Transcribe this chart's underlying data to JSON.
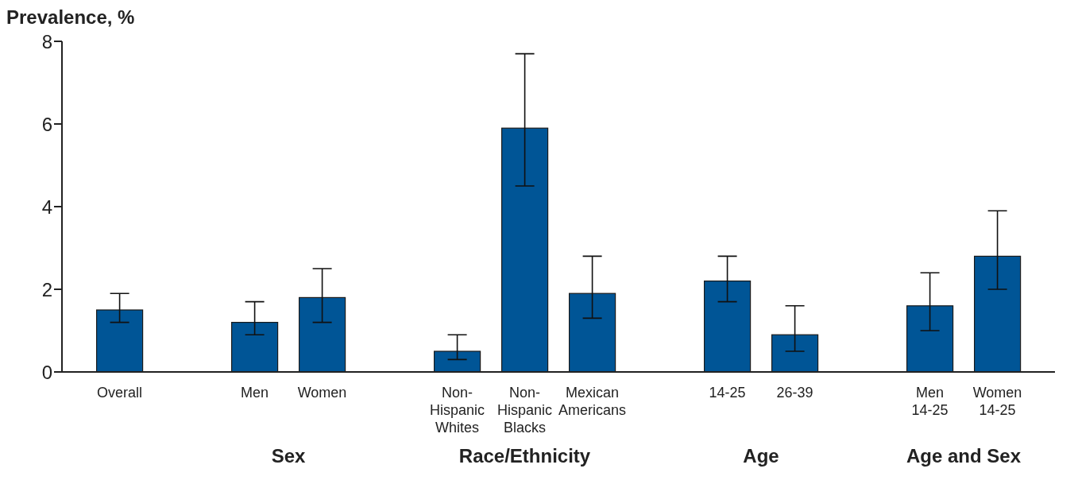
{
  "chart_data": {
    "type": "bar",
    "ylabel": "Prevalence, %",
    "categories": [
      "Overall",
      null,
      "Men",
      "Women",
      null,
      "Non-\nHispanic\nWhites",
      "Non-\nHispanic\nBlacks",
      "Mexican\nAmericans",
      null,
      "14-25",
      "26-39",
      null,
      "Men\n14-25",
      "Women\n14-25"
    ],
    "values": [
      1.5,
      null,
      1.2,
      1.8,
      null,
      0.5,
      5.9,
      1.9,
      null,
      2.2,
      0.9,
      null,
      1.6,
      2.8
    ],
    "errors": [
      [
        1.2,
        1.9
      ],
      null,
      [
        0.9,
        1.7
      ],
      [
        1.2,
        2.5
      ],
      null,
      [
        0.3,
        0.9
      ],
      [
        4.5,
        7.7
      ],
      [
        1.3,
        2.8
      ],
      null,
      [
        1.7,
        2.8
      ],
      [
        0.5,
        1.6
      ],
      null,
      [
        1.0,
        2.4
      ],
      [
        2.0,
        3.9
      ]
    ],
    "color": "#005596",
    "ylim": [
      0,
      8
    ],
    "yticks": [
      0,
      2,
      4,
      6,
      8
    ],
    "grid": false,
    "annotations": [
      "Sex",
      "Race/Ethnicity",
      "Age",
      "Age and Sex"
    ]
  }
}
